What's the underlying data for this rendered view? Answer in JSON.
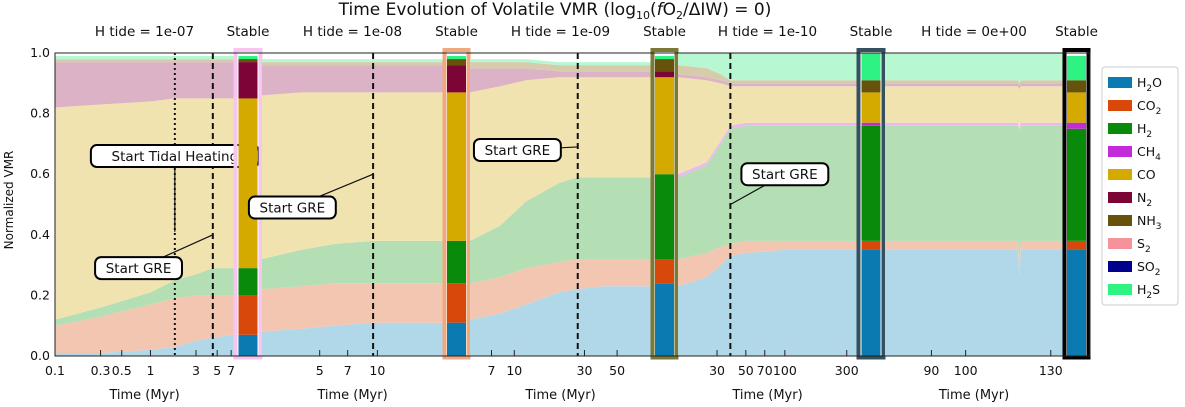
{
  "chart_data": {
    "type": "area",
    "title": "Time Evolution of Volatile VMR (log10(fO2/ΔIW) = 0)",
    "title_parts": {
      "pre": "Time Evolution of Volatile VMR (log",
      "sub": "10",
      "open": "(",
      "f": "f",
      "o2": "O",
      "o2sub": "2",
      "rest": "/ΔIW) = 0)"
    },
    "ylabel": "Normalized VMR",
    "ylim": [
      0,
      1
    ],
    "yticks": [
      "0.0",
      "0.2",
      "0.4",
      "0.6",
      "0.8",
      "1.0"
    ],
    "species": [
      {
        "label": "H",
        "sub": "2",
        "post": "O",
        "color": "#0a7ab0",
        "fill": "#b1d8e8"
      },
      {
        "label": "CO",
        "sub": "2",
        "post": "",
        "color": "#d8480a",
        "fill": "#f2c6b1"
      },
      {
        "label": "H",
        "sub": "2",
        "post": "",
        "color": "#0a8a0a",
        "fill": "#b4deb4"
      },
      {
        "label": "CH",
        "sub": "4",
        "post": "",
        "color": "#c32ad8",
        "fill": "#ecb8f2"
      },
      {
        "label": "CO",
        "sub": "",
        "post": "",
        "color": "#d4aa00",
        "fill": "#f1e3b0"
      },
      {
        "label": "N",
        "sub": "2",
        "post": "",
        "color": "#7d0536",
        "fill": "#dcb2c6"
      },
      {
        "label": "NH",
        "sub": "3",
        "post": "",
        "color": "#66520a",
        "fill": "#d6ccab"
      },
      {
        "label": "S",
        "sub": "2",
        "post": "",
        "color": "#f6939a",
        "fill": "#fcd8da"
      },
      {
        "label": "SO",
        "sub": "2",
        "post": "",
        "color": "#00008c",
        "fill": "#b0b0da"
      },
      {
        "label": "H",
        "sub": "2",
        "post": "S",
        "color": "#2ef281",
        "fill": "#b7f8d2"
      }
    ],
    "panels": [
      {
        "header": "H tide = 1e-07",
        "xlabel": "Time (Myr)",
        "ticks": [
          {
            "v": 0.1,
            "label": "0.1"
          },
          {
            "v": 0.3,
            "label": "0.3"
          },
          {
            "v": 0.5,
            "label": "0.5"
          },
          {
            "v": 1,
            "label": "1"
          },
          {
            "v": 3,
            "label": "3"
          },
          {
            "v": 5,
            "label": "5"
          },
          {
            "v": 7,
            "label": "7"
          }
        ],
        "xrange": [
          0.1,
          7.5
        ],
        "series_t": [
          0.1,
          0.3,
          1,
          1.8,
          3,
          4.5,
          7.5
        ],
        "cum": [
          [
            0.01,
            0.01,
            0.02,
            0.03,
            0.05,
            0.06,
            0.07
          ],
          [
            0.1,
            0.13,
            0.17,
            0.19,
            0.2,
            0.2,
            0.2
          ],
          [
            0.12,
            0.16,
            0.21,
            0.25,
            0.27,
            0.29,
            0.29
          ],
          [
            0.12,
            0.16,
            0.21,
            0.25,
            0.27,
            0.29,
            0.29
          ],
          [
            0.82,
            0.83,
            0.84,
            0.85,
            0.85,
            0.85,
            0.85
          ],
          [
            0.97,
            0.97,
            0.97,
            0.97,
            0.97,
            0.97,
            0.97
          ],
          [
            0.98,
            0.98,
            0.98,
            0.98,
            0.98,
            0.98,
            0.98
          ],
          [
            0.98,
            0.98,
            0.98,
            0.98,
            0.98,
            0.98,
            0.98
          ],
          [
            0.98,
            0.98,
            0.98,
            0.98,
            0.98,
            0.98,
            0.98
          ],
          [
            0.99,
            0.99,
            0.99,
            0.99,
            0.99,
            0.99,
            0.99
          ]
        ],
        "vlines": [
          {
            "t": 1.8,
            "style": "dotted"
          },
          {
            "t": 4.5,
            "style": "dashed"
          }
        ],
        "annotations": [
          {
            "text": "Start Tidal Heating",
            "tx": 1.8,
            "ty": 0.66,
            "ax": 1.8,
            "ay": 0.41
          },
          {
            "text": "Start GRE",
            "tx": 0.75,
            "ty": 0.29,
            "ax": 4.5,
            "ay": 0.4
          }
        ],
        "stable": {
          "label": "Stable",
          "frame": "#f6c6f1",
          "cum": [
            0.07,
            0.2,
            0.29,
            0.29,
            0.85,
            0.97,
            0.98,
            0.98,
            0.98,
            0.99
          ]
        }
      },
      {
        "header": "H tide = 1e-08",
        "xlabel": "Time (Myr)",
        "ticks": [
          {
            "v": 5,
            "label": "5"
          },
          {
            "v": 7,
            "label": "7"
          },
          {
            "v": 10,
            "label": "10"
          }
        ],
        "xrange": [
          2.5,
          22
        ],
        "series_t": [
          2.5,
          4,
          6,
          9.5,
          14,
          22
        ],
        "cum": [
          [
            0.08,
            0.09,
            0.1,
            0.11,
            0.11,
            0.11
          ],
          [
            0.22,
            0.23,
            0.24,
            0.24,
            0.24,
            0.24
          ],
          [
            0.32,
            0.35,
            0.37,
            0.38,
            0.38,
            0.38
          ],
          [
            0.32,
            0.35,
            0.37,
            0.38,
            0.38,
            0.38
          ],
          [
            0.86,
            0.87,
            0.87,
            0.87,
            0.87,
            0.87
          ],
          [
            0.96,
            0.96,
            0.96,
            0.96,
            0.96,
            0.96
          ],
          [
            0.97,
            0.97,
            0.97,
            0.97,
            0.97,
            0.97
          ],
          [
            0.97,
            0.97,
            0.97,
            0.97,
            0.97,
            0.97
          ],
          [
            0.97,
            0.97,
            0.97,
            0.97,
            0.97,
            0.97
          ],
          [
            0.98,
            0.98,
            0.98,
            0.98,
            0.98,
            0.98
          ]
        ],
        "vlines": [
          {
            "t": 9.5,
            "style": "dashed"
          }
        ],
        "annotations": [
          {
            "text": "Start GRE",
            "tx": 3.6,
            "ty": 0.49,
            "ax": 9.5,
            "ay": 0.6
          }
        ],
        "stable": {
          "label": "Stable",
          "frame": "#f0a97e",
          "cum": [
            0.11,
            0.24,
            0.38,
            0.38,
            0.87,
            0.96,
            0.98,
            0.98,
            0.98,
            0.99
          ]
        }
      },
      {
        "header": "H tide = 1e-09",
        "xlabel": "Time (Myr)",
        "ticks": [
          {
            "v": 7,
            "label": "7"
          },
          {
            "v": 10,
            "label": "10"
          },
          {
            "v": 30,
            "label": "30"
          },
          {
            "v": 50,
            "label": "50"
          }
        ],
        "xrange": [
          5,
          85
        ],
        "series_t": [
          5,
          8,
          12,
          20,
          27,
          40,
          85
        ],
        "cum": [
          [
            0.12,
            0.14,
            0.17,
            0.21,
            0.22,
            0.23,
            0.23
          ],
          [
            0.24,
            0.26,
            0.29,
            0.31,
            0.32,
            0.32,
            0.32
          ],
          [
            0.38,
            0.43,
            0.51,
            0.57,
            0.59,
            0.59,
            0.59
          ],
          [
            0.38,
            0.43,
            0.51,
            0.57,
            0.59,
            0.59,
            0.59
          ],
          [
            0.87,
            0.89,
            0.91,
            0.92,
            0.92,
            0.92,
            0.92
          ],
          [
            0.95,
            0.95,
            0.95,
            0.94,
            0.94,
            0.94,
            0.94
          ],
          [
            0.97,
            0.97,
            0.97,
            0.96,
            0.96,
            0.96,
            0.96
          ],
          [
            0.97,
            0.97,
            0.97,
            0.96,
            0.96,
            0.96,
            0.96
          ],
          [
            0.97,
            0.97,
            0.97,
            0.96,
            0.96,
            0.96,
            0.96
          ],
          [
            0.98,
            0.98,
            0.98,
            0.97,
            0.97,
            0.97,
            0.97
          ]
        ],
        "vlines": [
          {
            "t": 27,
            "style": "dashed"
          }
        ],
        "annotations": [
          {
            "text": "Start GRE",
            "tx": 10.5,
            "ty": 0.68,
            "ax": 27,
            "ay": 0.69
          }
        ],
        "stable": {
          "label": "Stable",
          "frame": "#7a7a36",
          "cum": [
            0.24,
            0.32,
            0.6,
            0.6,
            0.92,
            0.94,
            0.98,
            0.98,
            0.98,
            0.99
          ]
        }
      },
      {
        "header": "H tide = 1e-10",
        "xlabel": "Time (Myr)",
        "ticks": [
          {
            "v": 30,
            "label": "30"
          },
          {
            "v": 50,
            "label": "50"
          },
          {
            "v": 70,
            "label": "70"
          },
          {
            "v": 100,
            "label": "100"
          },
          {
            "v": 300,
            "label": "300"
          }
        ],
        "xrange": [
          15,
          360
        ],
        "series_t": [
          15,
          25,
          32,
          38,
          50,
          100,
          200,
          360
        ],
        "cum": [
          [
            0.23,
            0.26,
            0.3,
            0.33,
            0.34,
            0.35,
            0.35,
            0.35
          ],
          [
            0.32,
            0.34,
            0.36,
            0.37,
            0.38,
            0.38,
            0.38,
            0.38
          ],
          [
            0.59,
            0.63,
            0.7,
            0.75,
            0.76,
            0.76,
            0.76,
            0.76
          ],
          [
            0.6,
            0.64,
            0.71,
            0.76,
            0.77,
            0.77,
            0.77,
            0.77
          ],
          [
            0.92,
            0.91,
            0.9,
            0.89,
            0.89,
            0.89,
            0.89,
            0.89
          ],
          [
            0.93,
            0.92,
            0.91,
            0.9,
            0.9,
            0.9,
            0.9,
            0.9
          ],
          [
            0.96,
            0.95,
            0.93,
            0.91,
            0.91,
            0.91,
            0.91,
            0.91
          ],
          [
            0.96,
            0.95,
            0.93,
            0.91,
            0.91,
            0.91,
            0.91,
            0.91
          ],
          [
            0.96,
            0.95,
            0.93,
            0.91,
            0.91,
            0.91,
            0.91,
            0.91
          ],
          [
            1.0,
            1.0,
            1.0,
            1.0,
            1.0,
            1.0,
            1.0,
            1.0
          ]
        ],
        "vlines": [
          {
            "t": 38,
            "style": "dashed"
          }
        ],
        "annotations": [
          {
            "text": "Start GRE",
            "tx": 100,
            "ty": 0.6,
            "ax": 38,
            "ay": 0.5
          }
        ],
        "stable": {
          "label": "Stable",
          "frame": "#35505f",
          "cum": [
            0.35,
            0.38,
            0.76,
            0.77,
            0.87,
            0.87,
            0.91,
            0.91,
            0.91,
            1.0
          ]
        }
      },
      {
        "header": "H tide = 0e+00",
        "xlabel": "Time (Myr)",
        "ticks": [
          {
            "v": 90,
            "label": "90"
          },
          {
            "v": 100,
            "label": "100"
          },
          {
            "v": 130,
            "label": "130"
          }
        ],
        "xrange": [
          78,
          135
        ],
        "series_t": [
          78,
          100,
          117.5,
          118,
          118.5,
          135
        ],
        "cum": [
          [
            0.35,
            0.35,
            0.35,
            0.26,
            0.35,
            0.35
          ],
          [
            0.38,
            0.38,
            0.38,
            0.3,
            0.38,
            0.38
          ],
          [
            0.76,
            0.76,
            0.76,
            0.74,
            0.76,
            0.76
          ],
          [
            0.77,
            0.77,
            0.77,
            0.75,
            0.77,
            0.77
          ],
          [
            0.89,
            0.89,
            0.89,
            0.88,
            0.89,
            0.89
          ],
          [
            0.9,
            0.9,
            0.9,
            0.89,
            0.9,
            0.9
          ],
          [
            0.91,
            0.91,
            0.91,
            0.9,
            0.91,
            0.91
          ],
          [
            0.91,
            0.91,
            0.91,
            0.9,
            0.91,
            0.91
          ],
          [
            0.91,
            0.91,
            0.91,
            0.9,
            0.91,
            0.91
          ],
          [
            1.0,
            1.0,
            1.0,
            1.0,
            1.0,
            1.0
          ]
        ],
        "vlines": [],
        "annotations": [],
        "stable": {
          "label": "Stable",
          "frame": "#000000",
          "cum": [
            0.35,
            0.38,
            0.75,
            0.77,
            0.87,
            0.87,
            0.91,
            0.91,
            0.91,
            0.99
          ]
        }
      }
    ]
  }
}
